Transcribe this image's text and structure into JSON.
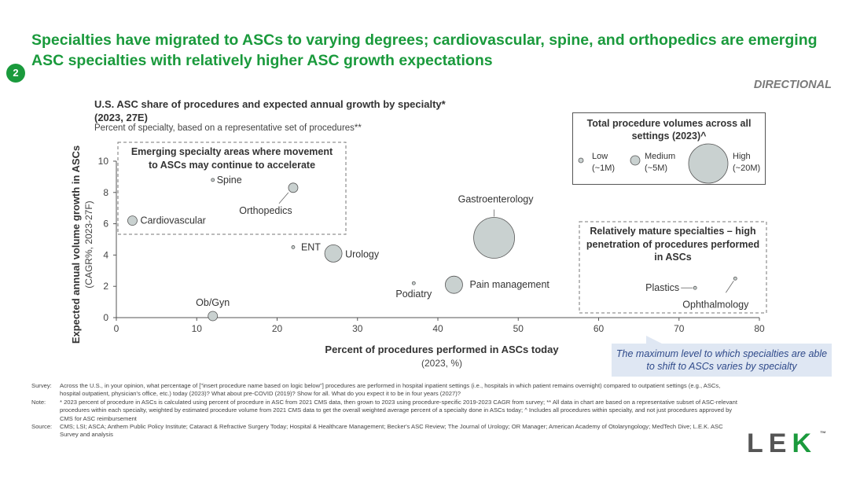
{
  "header": {
    "title": "Specialties have migrated to ASCs to varying degrees; cardiovascular, spine, and orthopedics are emerging ASC specialties with relatively higher ASC growth expectations",
    "page_badge": "2",
    "directional": "DIRECTIONAL"
  },
  "chart_header": {
    "title_line1": "U.S. ASC share of procedures and expected annual growth by specialty*",
    "title_line2": "(2023, 27E)",
    "subtitle": "Percent of specialty, based on a representative set of procedures**"
  },
  "legend": {
    "title": "Total procedure volumes across all settings (2023)^",
    "items": [
      {
        "label": "Low",
        "sub": "(~1M)",
        "volume_m": 1
      },
      {
        "label": "Medium",
        "sub": "(~5M)",
        "volume_m": 5
      },
      {
        "label": "High",
        "sub": "(~20M)",
        "volume_m": 20
      }
    ]
  },
  "annotations": {
    "emerging": "Emerging specialty areas where movement to ASCs may continue to accelerate",
    "mature": "Relatively mature specialties – high penetration of procedures performed in ASCs"
  },
  "callout": "The maximum level to which specialties are able to shift to ASCs varies by specialty",
  "chart_data": {
    "type": "scatter",
    "xlabel": "Percent of procedures performed in ASCs today",
    "xlabel_sub": "(2023, %)",
    "ylabel": "Expected annual volume growth in ASCs",
    "ylabel_sub": "(CAGR%, 2023-27F)",
    "xlim": [
      0,
      80
    ],
    "ylim": [
      0,
      10
    ],
    "xticks": [
      0,
      10,
      20,
      30,
      40,
      50,
      60,
      70,
      80
    ],
    "yticks": [
      0,
      2,
      4,
      6,
      8,
      10
    ],
    "series": [
      {
        "name": "Cardiovascular",
        "x": 2,
        "y": 6.2,
        "volume": "low-medium"
      },
      {
        "name": "Spine",
        "x": 12,
        "y": 8.8,
        "volume": "low"
      },
      {
        "name": "Orthopedics",
        "x": 22,
        "y": 8.3,
        "volume": "low-medium"
      },
      {
        "name": "ENT",
        "x": 22,
        "y": 4.5,
        "volume": "low"
      },
      {
        "name": "Urology",
        "x": 27,
        "y": 4.1,
        "volume": "medium"
      },
      {
        "name": "Ob/Gyn",
        "x": 12,
        "y": 0.1,
        "volume": "low-medium"
      },
      {
        "name": "Podiatry",
        "x": 37,
        "y": 2.2,
        "volume": "low"
      },
      {
        "name": "Pain management",
        "x": 42,
        "y": 2.1,
        "volume": "medium"
      },
      {
        "name": "Gastroenterology",
        "x": 47,
        "y": 5.1,
        "volume": "high"
      },
      {
        "name": "Plastics",
        "x": 72,
        "y": 1.9,
        "volume": "low"
      },
      {
        "name": "Ophthalmology",
        "x": 77,
        "y": 2.5,
        "volume": "low"
      }
    ]
  },
  "footnotes": [
    {
      "label": "Survey:",
      "text": "Across the U.S., in your opinion, what percentage of [\"insert procedure name based on logic below\"] procedures are performed in hospital inpatient settings (i.e., hospitals in which patient remains overnight) compared to outpatient settings (e.g., ASCs, hospital outpatient, physician's office, etc.) today (2023)? What about pre-COVID (2019)? Show for all. What do you expect it to be in four years (2027)?"
    },
    {
      "label": "Note:",
      "text": "* 2023 percent of procedure in ASCs is calculated using percent of procedure in ASC from 2021 CMS data, then grown to 2023 using procedure-specific 2019-2023 CAGR from survey; ** All data in chart are based on a representative subset of ASC-relevant procedures within each specialty, weighted by estimated procedure volume from 2021 CMS data to get the overall weighted average percent of a specialty done in ASCs today; ^ Includes all procedures within specialty, and not just procedures approved by CMS for ASC reimbursement"
    },
    {
      "label": "Source:",
      "text": "CMS; LSI; ASCA; Anthem Public Policy Institute; Cataract & Refractive Surgery Today; Hospital & Healthcare Management; Becker's ASC Review; The Journal of Urology; OR Manager; American Academy of Otolaryngology; MedTech Dive; L.E.K. ASC Survey and analysis"
    }
  ],
  "logo": {
    "l": "L",
    "e": "E",
    "k": "K",
    "tm": "™"
  }
}
